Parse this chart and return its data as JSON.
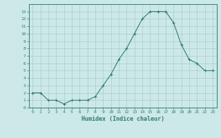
{
  "x": [
    0,
    1,
    2,
    3,
    4,
    5,
    6,
    7,
    8,
    9,
    10,
    11,
    12,
    13,
    14,
    15,
    16,
    17,
    18,
    19,
    20,
    21,
    22,
    23
  ],
  "y": [
    2,
    2,
    1,
    1,
    0.5,
    1,
    1,
    1,
    1.5,
    3,
    4.5,
    6.5,
    8,
    10,
    12,
    13,
    13,
    13,
    11.5,
    8.5,
    6.5,
    6,
    5,
    5
  ],
  "xlabel": "Humidex (Indice chaleur)",
  "line_color": "#2e7d6e",
  "marker": "+",
  "bg_color": "#cce8e8",
  "grid_color": "#aacccc",
  "tick_color": "#2e7d6e",
  "label_color": "#2e7d6e",
  "ylim": [
    0,
    14
  ],
  "xlim": [
    -0.5,
    23.5
  ],
  "yticks": [
    0,
    1,
    2,
    3,
    4,
    5,
    6,
    7,
    8,
    9,
    10,
    11,
    12,
    13
  ],
  "xticks": [
    0,
    1,
    2,
    3,
    4,
    5,
    6,
    7,
    8,
    9,
    10,
    11,
    12,
    13,
    14,
    15,
    16,
    17,
    18,
    19,
    20,
    21,
    22,
    23
  ]
}
